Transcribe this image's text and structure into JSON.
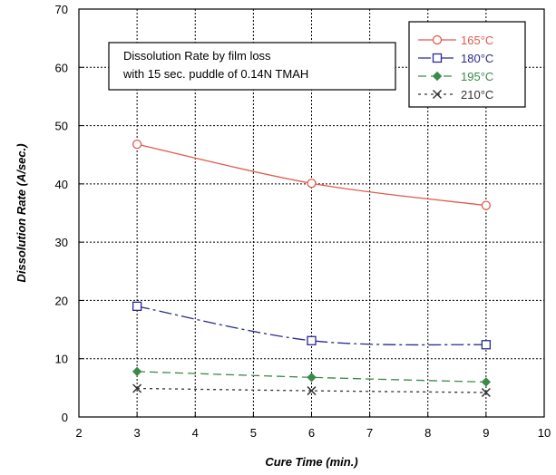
{
  "chart_data": {
    "type": "line",
    "title": "",
    "xlabel": "Cure Time (min.)",
    "ylabel": "Dissolution Rate (A/sec.)",
    "xlim": [
      2,
      10
    ],
    "ylim": [
      0,
      70
    ],
    "xticks": [
      2,
      3,
      4,
      5,
      6,
      7,
      8,
      9,
      10
    ],
    "yticks": [
      0,
      10,
      20,
      30,
      40,
      50,
      60,
      70
    ],
    "grid": true,
    "legend_position": "top-right",
    "annotation": [
      "Dissolution Rate by film loss",
      "with 15 sec. puddle of 0.14N TMAH"
    ],
    "x": [
      3,
      6,
      9
    ],
    "series": [
      {
        "name": "165°C",
        "values": [
          46.8,
          40.1,
          36.3
        ],
        "color": "#e05a4e",
        "marker": "circle",
        "dash": "solid"
      },
      {
        "name": "180°C",
        "values": [
          19.0,
          13.1,
          12.4
        ],
        "color": "#2a2a8c",
        "marker": "square",
        "dash": "longdash-dot"
      },
      {
        "name": "195°C",
        "values": [
          7.8,
          6.8,
          6.0
        ],
        "color": "#3a8a4a",
        "marker": "diamond",
        "dash": "dash"
      },
      {
        "name": "210°C",
        "values": [
          4.9,
          4.5,
          4.2
        ],
        "color": "#333333",
        "marker": "x",
        "dash": "dot"
      }
    ]
  }
}
